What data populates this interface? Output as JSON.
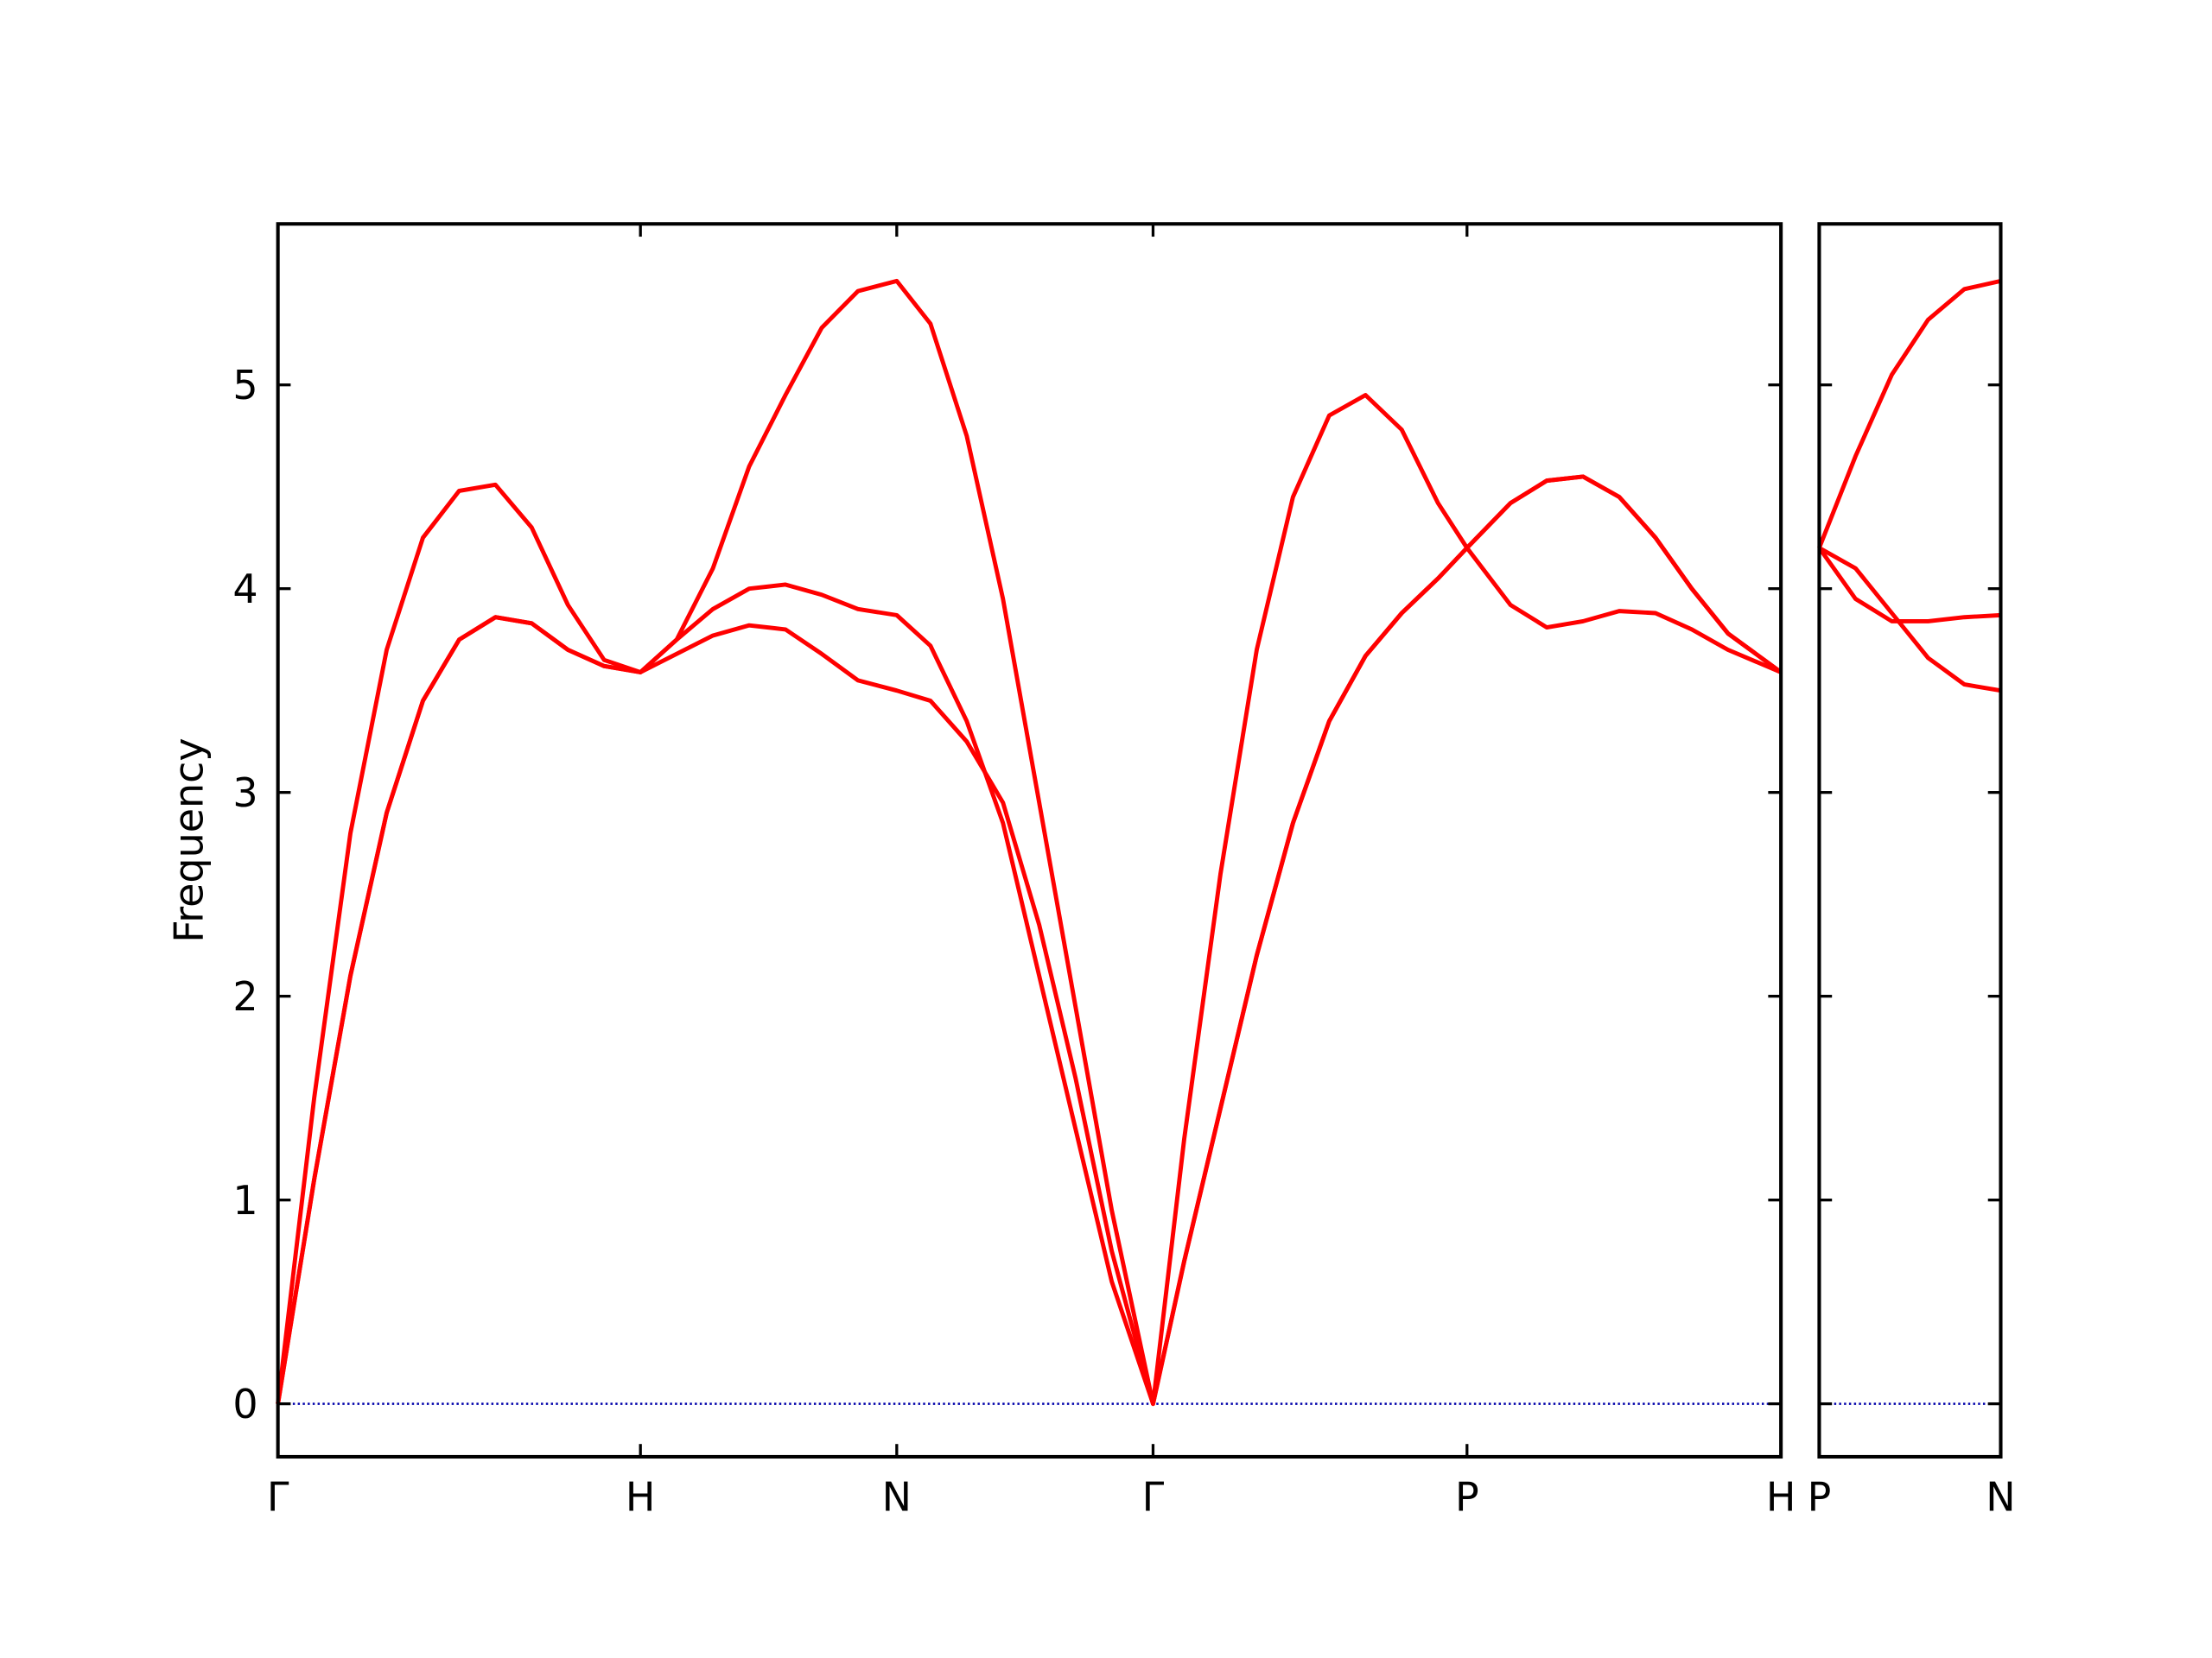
{
  "chart_data": [
    {
      "type": "line",
      "y_label": "Frequency",
      "x": [
        0,
        0.1,
        0.2,
        0.3,
        0.4,
        0.5,
        0.6,
        0.7,
        0.8,
        0.9,
        1.0,
        1.1,
        1.2,
        1.3,
        1.4,
        1.5,
        1.6,
        1.707,
        1.8,
        1.9,
        2.0,
        2.1,
        2.2,
        2.3,
        2.414,
        2.5,
        2.6,
        2.7,
        2.8,
        2.9,
        3.0,
        3.1,
        3.2,
        3.28,
        3.4,
        3.5,
        3.6,
        3.7,
        3.8,
        3.9,
        4.0,
        4.146
      ],
      "series": [
        {
          "color": "#ff0000",
          "values": [
            0,
            1.1,
            2.1,
            2.9,
            3.45,
            3.75,
            3.86,
            3.83,
            3.7,
            3.62,
            3.59,
            3.68,
            3.77,
            3.82,
            3.8,
            3.68,
            3.55,
            3.5,
            3.45,
            3.25,
            2.95,
            2.35,
            1.6,
            0.75,
            0,
            0.7,
            1.45,
            2.2,
            2.85,
            3.35,
            3.67,
            3.88,
            4.05,
            4.2,
            3.92,
            3.81,
            3.84,
            3.89,
            3.88,
            3.8,
            3.7,
            3.59
          ]
        },
        {
          "color": "#ff0000",
          "values": [
            0,
            1.1,
            2.1,
            2.9,
            3.45,
            3.75,
            3.86,
            3.83,
            3.7,
            3.62,
            3.59,
            3.75,
            3.9,
            4.0,
            4.02,
            3.97,
            3.9,
            3.87,
            3.72,
            3.35,
            2.85,
            2.1,
            1.35,
            0.6,
            0,
            0.7,
            1.45,
            2.2,
            2.85,
            3.35,
            3.67,
            3.88,
            4.05,
            4.2,
            4.42,
            4.53,
            4.55,
            4.45,
            4.25,
            4.0,
            3.78,
            3.59
          ]
        },
        {
          "color": "#ff0000",
          "values": [
            0,
            1.5,
            2.8,
            3.7,
            4.25,
            4.48,
            4.51,
            4.3,
            3.92,
            3.65,
            3.59,
            3.75,
            4.1,
            4.6,
            4.95,
            5.28,
            5.46,
            5.51,
            5.3,
            4.75,
            3.95,
            2.95,
            1.95,
            0.95,
            0,
            1.3,
            2.6,
            3.7,
            4.45,
            4.85,
            4.95,
            4.78,
            4.42,
            4.2,
            4.42,
            4.53,
            4.55,
            4.45,
            4.25,
            4.0,
            3.78,
            3.59
          ]
        }
      ],
      "xlim": [
        0,
        4.146
      ],
      "ylim": [
        -0.26,
        5.79
      ],
      "xticks": [
        {
          "value": 0,
          "label": "Γ"
        },
        {
          "value": 1.0,
          "label": "H"
        },
        {
          "value": 1.707,
          "label": "N"
        },
        {
          "value": 2.414,
          "label": "Γ"
        },
        {
          "value": 3.28,
          "label": "P"
        },
        {
          "value": 4.146,
          "label": "H"
        }
      ],
      "yticks": [
        0,
        1,
        2,
        3,
        4,
        5
      ],
      "show_ytick_labels": true,
      "zero_line": true,
      "zero_line_color": "#0000aa"
    },
    {
      "type": "line",
      "x": [
        0,
        0.1,
        0.2,
        0.3,
        0.4,
        0.5
      ],
      "series": [
        {
          "color": "#ff0000",
          "values": [
            4.2,
            4.65,
            5.05,
            5.32,
            5.47,
            5.51
          ]
        },
        {
          "color": "#ff0000",
          "values": [
            4.2,
            3.95,
            3.84,
            3.84,
            3.86,
            3.87
          ]
        },
        {
          "color": "#ff0000",
          "values": [
            4.2,
            4.1,
            3.88,
            3.66,
            3.53,
            3.5
          ]
        }
      ],
      "xlim": [
        0,
        0.5
      ],
      "ylim": [
        -0.26,
        5.79
      ],
      "xticks": [
        {
          "value": 0,
          "label": "P"
        },
        {
          "value": 0.5,
          "label": "N"
        }
      ],
      "yticks": [
        0,
        1,
        2,
        3,
        4,
        5
      ],
      "show_ytick_labels": false,
      "zero_line": true,
      "zero_line_color": "#0000aa"
    }
  ]
}
